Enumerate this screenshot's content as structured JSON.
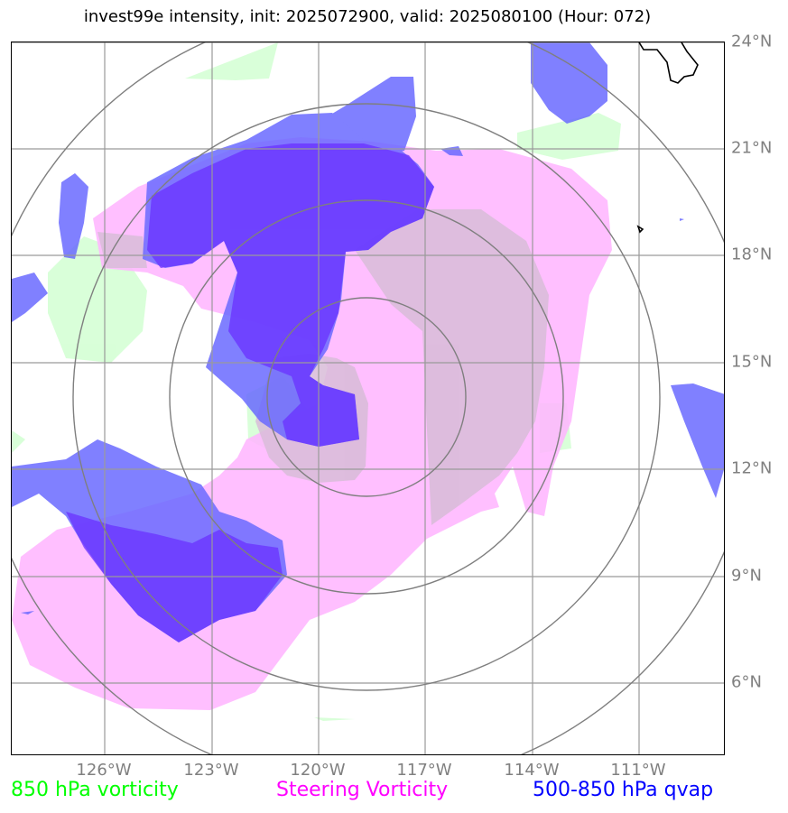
{
  "title": "invest99e intensity, init: 2025072900, valid: 2025080100 (Hour: 072)",
  "lat_labels": [
    "24°N",
    "21°N",
    "18°N",
    "15°N",
    "12°N",
    "9°N",
    "6°N"
  ],
  "lon_labels": [
    "126°W",
    "123°W",
    "120°W",
    "117°W",
    "114°W",
    "111°W"
  ],
  "legend": {
    "green": "850 hPa vorticity",
    "pink": "Steering Vorticity",
    "blue": "500-850 hPa qvap"
  },
  "colors": {
    "green": "#ccffcc",
    "pink": "#ffbbff",
    "blue": "#6666ff",
    "grid": "#9a9a9a",
    "rings": "#7f7f7f",
    "coast": "#000000"
  }
}
